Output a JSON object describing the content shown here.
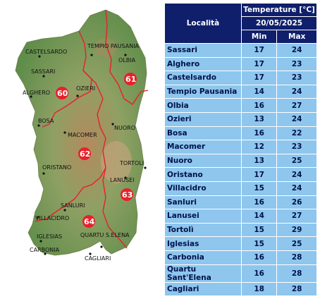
{
  "map": {
    "towns": [
      "CASTELSARDO",
      "TEMPIO PAUSANIA",
      "OLBIA",
      "SASSARI",
      "ALGHERO",
      "OZIERI",
      "BOSA",
      "MACOMER",
      "NUORO",
      "ORISTANO",
      "TORTOLI",
      "LANUSEI",
      "SANLURI",
      "VILLACIDRO",
      "IGLESIAS",
      "QUARTU S.ELENA",
      "CARBONIA",
      "CAGLIARI"
    ],
    "zones": [
      "60",
      "61",
      "62",
      "63",
      "64"
    ],
    "colors": {
      "boundary": "#e8202a",
      "zone_circle": "#e8202a",
      "land_low": "#5f8d4a",
      "land_high": "#b48a5e"
    }
  },
  "table": {
    "header": {
      "locality": "Località",
      "temperature": "Temperature [°C]",
      "date": "20/05/2025",
      "min": "Min",
      "max": "Max"
    },
    "rows": [
      {
        "name": "Sassari",
        "min": "17",
        "max": "24"
      },
      {
        "name": "Alghero",
        "min": "17",
        "max": "23"
      },
      {
        "name": "Castelsardo",
        "min": "17",
        "max": "23"
      },
      {
        "name": "Tempio Pausania",
        "min": "14",
        "max": "24"
      },
      {
        "name": "Olbia",
        "min": "16",
        "max": "27"
      },
      {
        "name": "Ozieri",
        "min": "13",
        "max": "24"
      },
      {
        "name": "Bosa",
        "min": "16",
        "max": "22"
      },
      {
        "name": "Macomer",
        "min": "12",
        "max": "23"
      },
      {
        "name": "Nuoro",
        "min": "13",
        "max": "25"
      },
      {
        "name": "Oristano",
        "min": "17",
        "max": "24"
      },
      {
        "name": "Villacidro",
        "min": "15",
        "max": "24"
      },
      {
        "name": "Sanluri",
        "min": "16",
        "max": "26"
      },
      {
        "name": "Lanusei",
        "min": "14",
        "max": "27"
      },
      {
        "name": "Tortolì",
        "min": "15",
        "max": "29"
      },
      {
        "name": "Iglesias",
        "min": "15",
        "max": "25"
      },
      {
        "name": "Carbonia",
        "min": "16",
        "max": "28"
      },
      {
        "name": "Quartu Sant'Elena",
        "min": "16",
        "max": "28"
      },
      {
        "name": "Cagliari",
        "min": "18",
        "max": "28"
      }
    ],
    "colors": {
      "header_bg": "#0f1f6b",
      "cell_bg": "#8ec6ee",
      "cell_text": "#00124a"
    }
  }
}
